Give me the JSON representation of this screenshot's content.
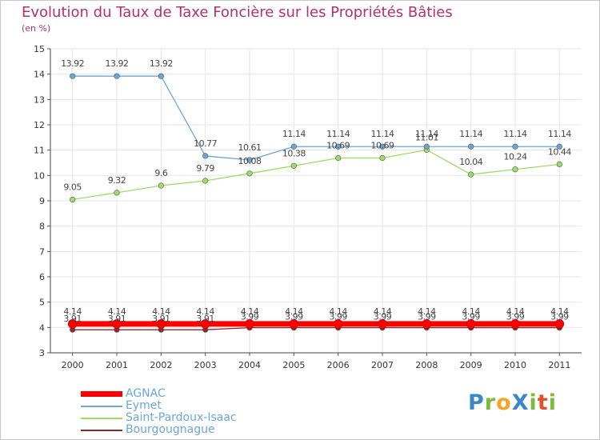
{
  "chart_data": {
    "type": "line",
    "title": "Evolution du Taux de Taxe Foncière sur les Propriétés Bâties",
    "ylabel": "(en %)",
    "xlabel": "",
    "ylim": [
      3,
      15
    ],
    "yticks": [
      "3",
      "4",
      "5",
      "6",
      "7",
      "8",
      "9",
      "10",
      "11",
      "12",
      "13",
      "14",
      "15"
    ],
    "categories": [
      "2000",
      "2001",
      "2002",
      "2003",
      "2004",
      "2005",
      "2006",
      "2007",
      "2008",
      "2009",
      "2010",
      "2011"
    ],
    "grid": true,
    "legend_position": "bottom-left",
    "series": [
      {
        "name": "AGNAC",
        "color": "#ff0000",
        "values": [
          4.14,
          4.14,
          4.14,
          4.14,
          4.14,
          4.14,
          4.14,
          4.14,
          4.14,
          4.14,
          4.14,
          4.14
        ],
        "labels": [
          "4.14",
          "4.14",
          "4.14",
          "4.14",
          "4.14",
          "4.14",
          "4.14",
          "4.14",
          "4.14",
          "4.14",
          "4.14",
          "4.14"
        ]
      },
      {
        "name": "Eymet",
        "color": "#6aa6d6",
        "values": [
          13.92,
          13.92,
          13.92,
          10.77,
          10.61,
          11.14,
          11.14,
          11.14,
          11.14,
          11.14,
          11.14,
          11.14
        ],
        "labels": [
          "13.92",
          "13.92",
          "13.92",
          "10.77",
          "10.61",
          "11.14",
          "11.14",
          "11.14",
          "11.14",
          "11.14",
          "11.14",
          "11.14"
        ]
      },
      {
        "name": "Saint-Pardoux-Isaac",
        "color": "#9cdc68",
        "values": [
          9.05,
          9.32,
          9.6,
          9.79,
          10.08,
          10.38,
          10.69,
          10.69,
          11.01,
          10.04,
          10.24,
          10.44
        ],
        "labels": [
          "9.05",
          "9.32",
          "9.6",
          "9.79",
          "10.08",
          "10.38",
          "10.69",
          "10.69",
          "11.01",
          "10.04",
          "10.24",
          "10.44"
        ]
      },
      {
        "name": "Bourgougnague",
        "color": "#8c2a2a",
        "values": [
          3.91,
          3.91,
          3.91,
          3.91,
          3.99,
          3.99,
          3.99,
          3.99,
          3.99,
          3.99,
          3.99,
          3.99
        ],
        "labels": [
          "3.91",
          "3.91",
          "3.91",
          "3.91",
          "3.99",
          "3.99",
          "3.99",
          "3.99",
          "3.99",
          "3.99",
          "3.99",
          "3.99"
        ]
      }
    ]
  },
  "legend": {
    "items": [
      "AGNAC",
      "Eymet",
      "Saint-Pardoux-Isaac",
      "Bourgougnague"
    ]
  },
  "logo": {
    "text": "ProXiti",
    "letters": [
      "P",
      "r",
      "o",
      "X",
      "i",
      "t",
      "i"
    ]
  }
}
